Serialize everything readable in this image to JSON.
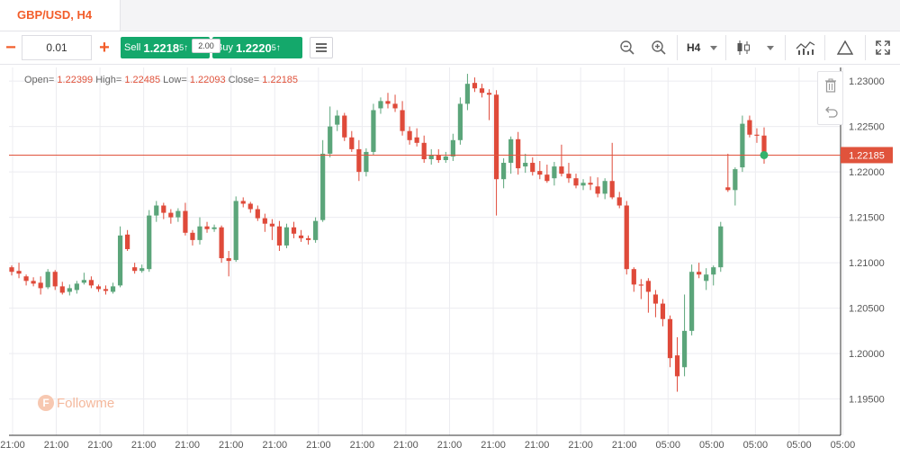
{
  "header": {
    "symbol_tab": "GBP/USD, H4"
  },
  "toolbar": {
    "lot_minus": "−",
    "lot_value": "0.01",
    "lot_plus": "+",
    "sell_label": "Sell",
    "sell_price_main": "1.2218",
    "sell_price_sup": "5",
    "buy_label": "Buy",
    "buy_price_main": "1.2220",
    "buy_price_sup": "5",
    "spread": "2.00",
    "timeframe": "H4",
    "icons": [
      "zoom-out-icon",
      "zoom-in-icon",
      "candlestick-icon",
      "indicators-icon",
      "drawing-triangle-icon",
      "fullscreen-icon"
    ]
  },
  "ohlc": {
    "open_label": "Open=",
    "open": "1.22399",
    "high_label": "High=",
    "high": "1.22485",
    "low_label": "Low=",
    "low": "1.22093",
    "close_label": "Close=",
    "close": "1.22185"
  },
  "watermark": "Followme",
  "colors": {
    "up": "#5ba57a",
    "down": "#df4a3a",
    "accent": "#f25d2a",
    "trade": "#14a86b"
  },
  "chart_data": {
    "type": "candlestick",
    "price_axis_ticks": [
      "1.23000",
      "1.22500",
      "1.22000",
      "1.21500",
      "1.21000",
      "1.20500",
      "1.20000",
      "1.19500"
    ],
    "current_price": "1.22185",
    "ylim": [
      1.191,
      1.2315
    ],
    "time_axis_ticks": [
      "21:00",
      "21:00",
      "21:00",
      "21:00",
      "21:00",
      "21:00",
      "21:00",
      "21:00",
      "21:00",
      "21:00",
      "21:00",
      "21:00",
      "21:00",
      "21:00",
      "21:00",
      "05:00",
      "05:00",
      "05:00",
      "05:00",
      "05:00"
    ],
    "candles": [
      [
        1.2095,
        1.2097,
        1.2086,
        1.209
      ],
      [
        1.2091,
        1.21,
        1.2083,
        1.2088
      ],
      [
        1.2085,
        1.2087,
        1.2075,
        1.208
      ],
      [
        1.208,
        1.2084,
        1.2074,
        1.2077
      ],
      [
        1.2078,
        1.2085,
        1.2065,
        1.2072
      ],
      [
        1.2073,
        1.2093,
        1.2071,
        1.209
      ],
      [
        1.209,
        1.2092,
        1.207,
        1.2074
      ],
      [
        1.2074,
        1.2079,
        1.2065,
        1.2067
      ],
      [
        1.2068,
        1.2076,
        1.2064,
        1.2072
      ],
      [
        1.207,
        1.208,
        1.2066,
        1.2077
      ],
      [
        1.2078,
        1.2089,
        1.2076,
        1.2081
      ],
      [
        1.2081,
        1.2085,
        1.2072,
        1.2075
      ],
      [
        1.2074,
        1.2076,
        1.2068,
        1.2071
      ],
      [
        1.2071,
        1.2075,
        1.2065,
        1.2069
      ],
      [
        1.2068,
        1.2078,
        1.2066,
        1.2074
      ],
      [
        1.2075,
        1.214,
        1.2073,
        1.213
      ],
      [
        1.2131,
        1.2136,
        1.2113,
        1.2115
      ],
      [
        1.2095,
        1.21,
        1.2088,
        1.2091
      ],
      [
        1.2091,
        1.2098,
        1.2089,
        1.2094
      ],
      [
        1.2093,
        1.2158,
        1.209,
        1.2152
      ],
      [
        1.2152,
        1.2168,
        1.2145,
        1.2163
      ],
      [
        1.2163,
        1.2166,
        1.2148,
        1.2155
      ],
      [
        1.2155,
        1.2159,
        1.2143,
        1.215
      ],
      [
        1.215,
        1.216,
        1.2145,
        1.2157
      ],
      [
        1.2157,
        1.2166,
        1.213,
        1.2133
      ],
      [
        1.2133,
        1.2136,
        1.2119,
        1.2125
      ],
      [
        1.2125,
        1.215,
        1.212,
        1.214
      ],
      [
        1.214,
        1.2145,
        1.2133,
        1.2137
      ],
      [
        1.2137,
        1.2142,
        1.2134,
        1.2139
      ],
      [
        1.2139,
        1.2141,
        1.21,
        1.2105
      ],
      [
        1.2105,
        1.2113,
        1.2085,
        1.2102
      ],
      [
        1.2103,
        1.2173,
        1.2101,
        1.2168
      ],
      [
        1.2168,
        1.2172,
        1.2161,
        1.2165
      ],
      [
        1.2165,
        1.2167,
        1.2155,
        1.2159
      ],
      [
        1.2159,
        1.2163,
        1.2146,
        1.2149
      ],
      [
        1.2149,
        1.2154,
        1.2134,
        1.2143
      ],
      [
        1.2143,
        1.2148,
        1.2125,
        1.214
      ],
      [
        1.214,
        1.2146,
        1.2113,
        1.2119
      ],
      [
        1.2119,
        1.2143,
        1.2116,
        1.2139
      ],
      [
        1.2139,
        1.2145,
        1.2127,
        1.2132
      ],
      [
        1.213,
        1.2136,
        1.2123,
        1.2127
      ],
      [
        1.2127,
        1.213,
        1.212,
        1.2125
      ],
      [
        1.2125,
        1.215,
        1.2122,
        1.2146
      ],
      [
        1.2147,
        1.2235,
        1.2145,
        1.222
      ],
      [
        1.222,
        1.2272,
        1.2216,
        1.225
      ],
      [
        1.2252,
        1.2268,
        1.2245,
        1.2262
      ],
      [
        1.2262,
        1.2265,
        1.2234,
        1.2238
      ],
      [
        1.2238,
        1.2245,
        1.2222,
        1.2225
      ],
      [
        1.2225,
        1.2235,
        1.219,
        1.22
      ],
      [
        1.22,
        1.2226,
        1.2195,
        1.2222
      ],
      [
        1.2222,
        1.2275,
        1.2218,
        1.2268
      ],
      [
        1.227,
        1.2282,
        1.2264,
        1.2278
      ],
      [
        1.2278,
        1.2287,
        1.227,
        1.2275
      ],
      [
        1.2275,
        1.2285,
        1.2266,
        1.227
      ],
      [
        1.2268,
        1.2278,
        1.224,
        1.2245
      ],
      [
        1.2245,
        1.225,
        1.223,
        1.2235
      ],
      [
        1.2238,
        1.2248,
        1.2228,
        1.2232
      ],
      [
        1.2232,
        1.224,
        1.221,
        1.2214
      ],
      [
        1.2214,
        1.2225,
        1.2208,
        1.2218
      ],
      [
        1.2218,
        1.2225,
        1.221,
        1.2213
      ],
      [
        1.2213,
        1.2222,
        1.221,
        1.2217
      ],
      [
        1.2217,
        1.2242,
        1.2212,
        1.2235
      ],
      [
        1.2235,
        1.2282,
        1.223,
        1.2275
      ],
      [
        1.2275,
        1.2308,
        1.2268,
        1.2297
      ],
      [
        1.2298,
        1.2304,
        1.2288,
        1.2292
      ],
      [
        1.2292,
        1.2297,
        1.2282,
        1.2287
      ],
      [
        1.2287,
        1.2291,
        1.2257,
        1.2285
      ],
      [
        1.2285,
        1.229,
        1.2152,
        1.2192
      ],
      [
        1.2192,
        1.2215,
        1.2182,
        1.221
      ],
      [
        1.221,
        1.2239,
        1.2198,
        1.2236
      ],
      [
        1.2236,
        1.2244,
        1.2197,
        1.2204
      ],
      [
        1.2206,
        1.222,
        1.2199,
        1.221
      ],
      [
        1.221,
        1.2216,
        1.2196,
        1.22
      ],
      [
        1.2201,
        1.2212,
        1.2192,
        1.2197
      ],
      [
        1.2197,
        1.2208,
        1.2188,
        1.219
      ],
      [
        1.2193,
        1.2211,
        1.2185,
        1.2206
      ],
      [
        1.2206,
        1.223,
        1.2195,
        1.2198
      ],
      [
        1.2198,
        1.221,
        1.2188,
        1.2193
      ],
      [
        1.2193,
        1.2198,
        1.2182,
        1.2185
      ],
      [
        1.2185,
        1.2192,
        1.218,
        1.2188
      ],
      [
        1.2188,
        1.2195,
        1.218,
        1.2186
      ],
      [
        1.2184,
        1.2194,
        1.2172,
        1.2176
      ],
      [
        1.2176,
        1.2193,
        1.217,
        1.219
      ],
      [
        1.219,
        1.2232,
        1.217,
        1.2172
      ],
      [
        1.2172,
        1.2178,
        1.216,
        1.2163
      ],
      [
        1.2163,
        1.2168,
        1.2087,
        1.2093
      ],
      [
        1.2093,
        1.2095,
        1.2068,
        1.2076
      ],
      [
        1.2076,
        1.2082,
        1.206,
        1.2075
      ],
      [
        1.208,
        1.2083,
        1.2045,
        1.2068
      ],
      [
        1.2065,
        1.207,
        1.204,
        1.2055
      ],
      [
        1.2055,
        1.206,
        1.203,
        1.2038
      ],
      [
        1.2038,
        1.2042,
        1.1985,
        1.1995
      ],
      [
        1.1998,
        1.2018,
        1.1958,
        1.1975
      ],
      [
        1.1985,
        1.2065,
        1.1975,
        1.2025
      ],
      [
        1.2025,
        1.2098,
        1.202,
        1.209
      ],
      [
        1.209,
        1.21,
        1.2083,
        1.2087
      ],
      [
        1.208,
        1.2094,
        1.207,
        1.2087
      ],
      [
        1.2087,
        1.2097,
        1.2075,
        1.2095
      ],
      [
        1.2095,
        1.2145,
        1.209,
        1.214
      ],
      [
        1.2183,
        1.222,
        1.2178,
        1.218
      ],
      [
        1.218,
        1.2205,
        1.2163,
        1.2203
      ],
      [
        1.2205,
        1.2262,
        1.22,
        1.2253
      ],
      [
        1.2257,
        1.2262,
        1.2238,
        1.2241
      ],
      [
        1.2241,
        1.2248,
        1.2232,
        1.224
      ],
      [
        1.224,
        1.2249,
        1.2209,
        1.2219
      ]
    ]
  }
}
